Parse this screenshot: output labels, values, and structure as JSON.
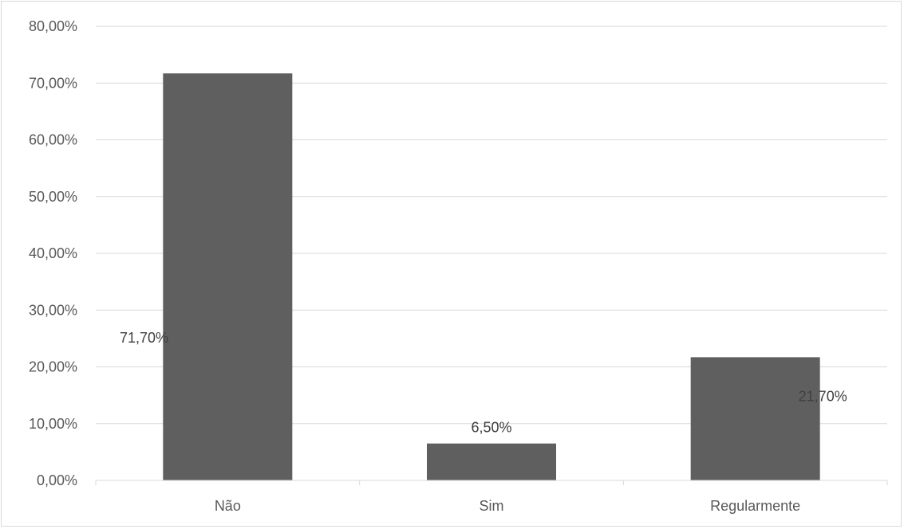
{
  "chart_data": {
    "type": "bar",
    "categories": [
      "Não",
      "Sim",
      "Regularmente"
    ],
    "values": [
      71.7,
      6.5,
      21.7
    ],
    "data_labels": [
      "71,70%",
      "6,50%",
      "21,70%"
    ],
    "ylim": [
      0,
      80
    ],
    "yticks": [
      0,
      10,
      20,
      30,
      40,
      50,
      60,
      70,
      80
    ],
    "ytick_labels": [
      "0,00%",
      "10,00%",
      "20,00%",
      "30,00%",
      "40,00%",
      "50,00%",
      "60,00%",
      "70,00%",
      "80,00%"
    ],
    "grid": true,
    "legend": "none",
    "bar_color": "#5f5f5f",
    "grid_color": "#d9d9d9"
  }
}
